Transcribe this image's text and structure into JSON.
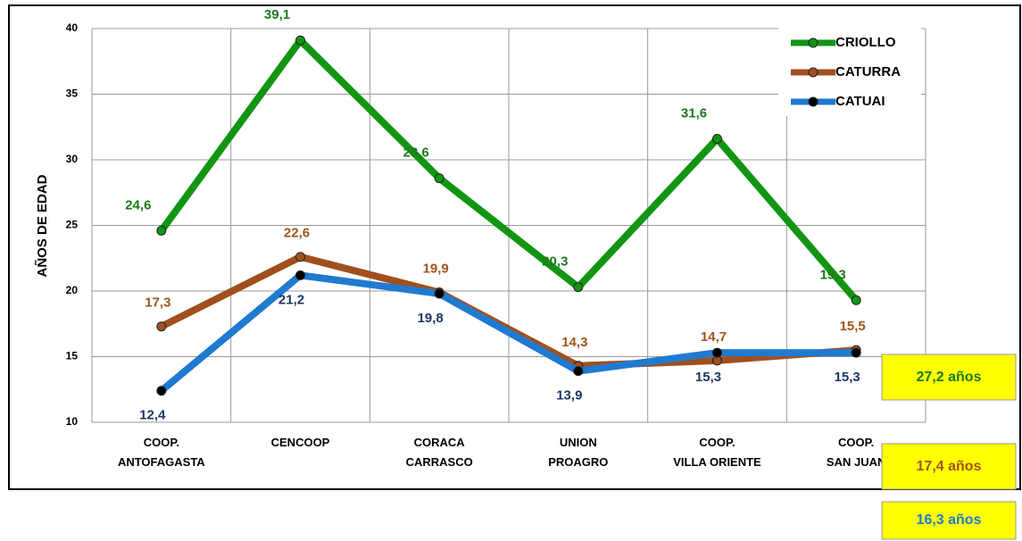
{
  "chart_data": {
    "type": "line",
    "y_label": "AÑOS DE EDAD",
    "categories": [
      "COOP.\nANTOFAGASTA",
      "CENCOOP",
      "CORACA\nCARRASCO",
      "UNION\nPROAGRO",
      "COOP.\nVILLA ORIENTE",
      "COOP.\nSAN JUAN"
    ],
    "series": [
      {
        "name": "CRIOLLO",
        "color": "#129512",
        "label_color": "#1b7a1b",
        "values": [
          24.6,
          39.1,
          28.6,
          20.3,
          31.6,
          19.3
        ],
        "value_labels": [
          "24,6",
          "39,1",
          "28,6",
          "20,3",
          "31,6",
          "19,3"
        ]
      },
      {
        "name": "CATURRA",
        "color": "#a0501e",
        "label_color": "#a0541e",
        "values": [
          17.3,
          22.6,
          19.9,
          14.3,
          14.7,
          15.5
        ],
        "value_labels": [
          "17,3",
          "22,6",
          "19,9",
          "14,3",
          "14,7",
          "15,5"
        ]
      },
      {
        "name": "CATUAI",
        "color": "#1f7ad0",
        "label_color": "#1f3864",
        "values": [
          12.4,
          21.2,
          19.8,
          13.9,
          15.3,
          15.3
        ],
        "value_labels": [
          "12,4",
          "21,2",
          "19,8",
          "13,9",
          "15,3",
          "15,3"
        ]
      }
    ],
    "ylim": [
      10,
      40
    ],
    "yticks": [
      10,
      15,
      20,
      25,
      30,
      35,
      40
    ],
    "grid": true,
    "legend": "top-right",
    "annotations": [
      {
        "text": "27,2 años",
        "color": "#1b7a1b"
      },
      {
        "text": "17,4 años",
        "color": "#a0541e"
      },
      {
        "text": "16,3 años",
        "color": "#1f7ad0"
      }
    ]
  }
}
